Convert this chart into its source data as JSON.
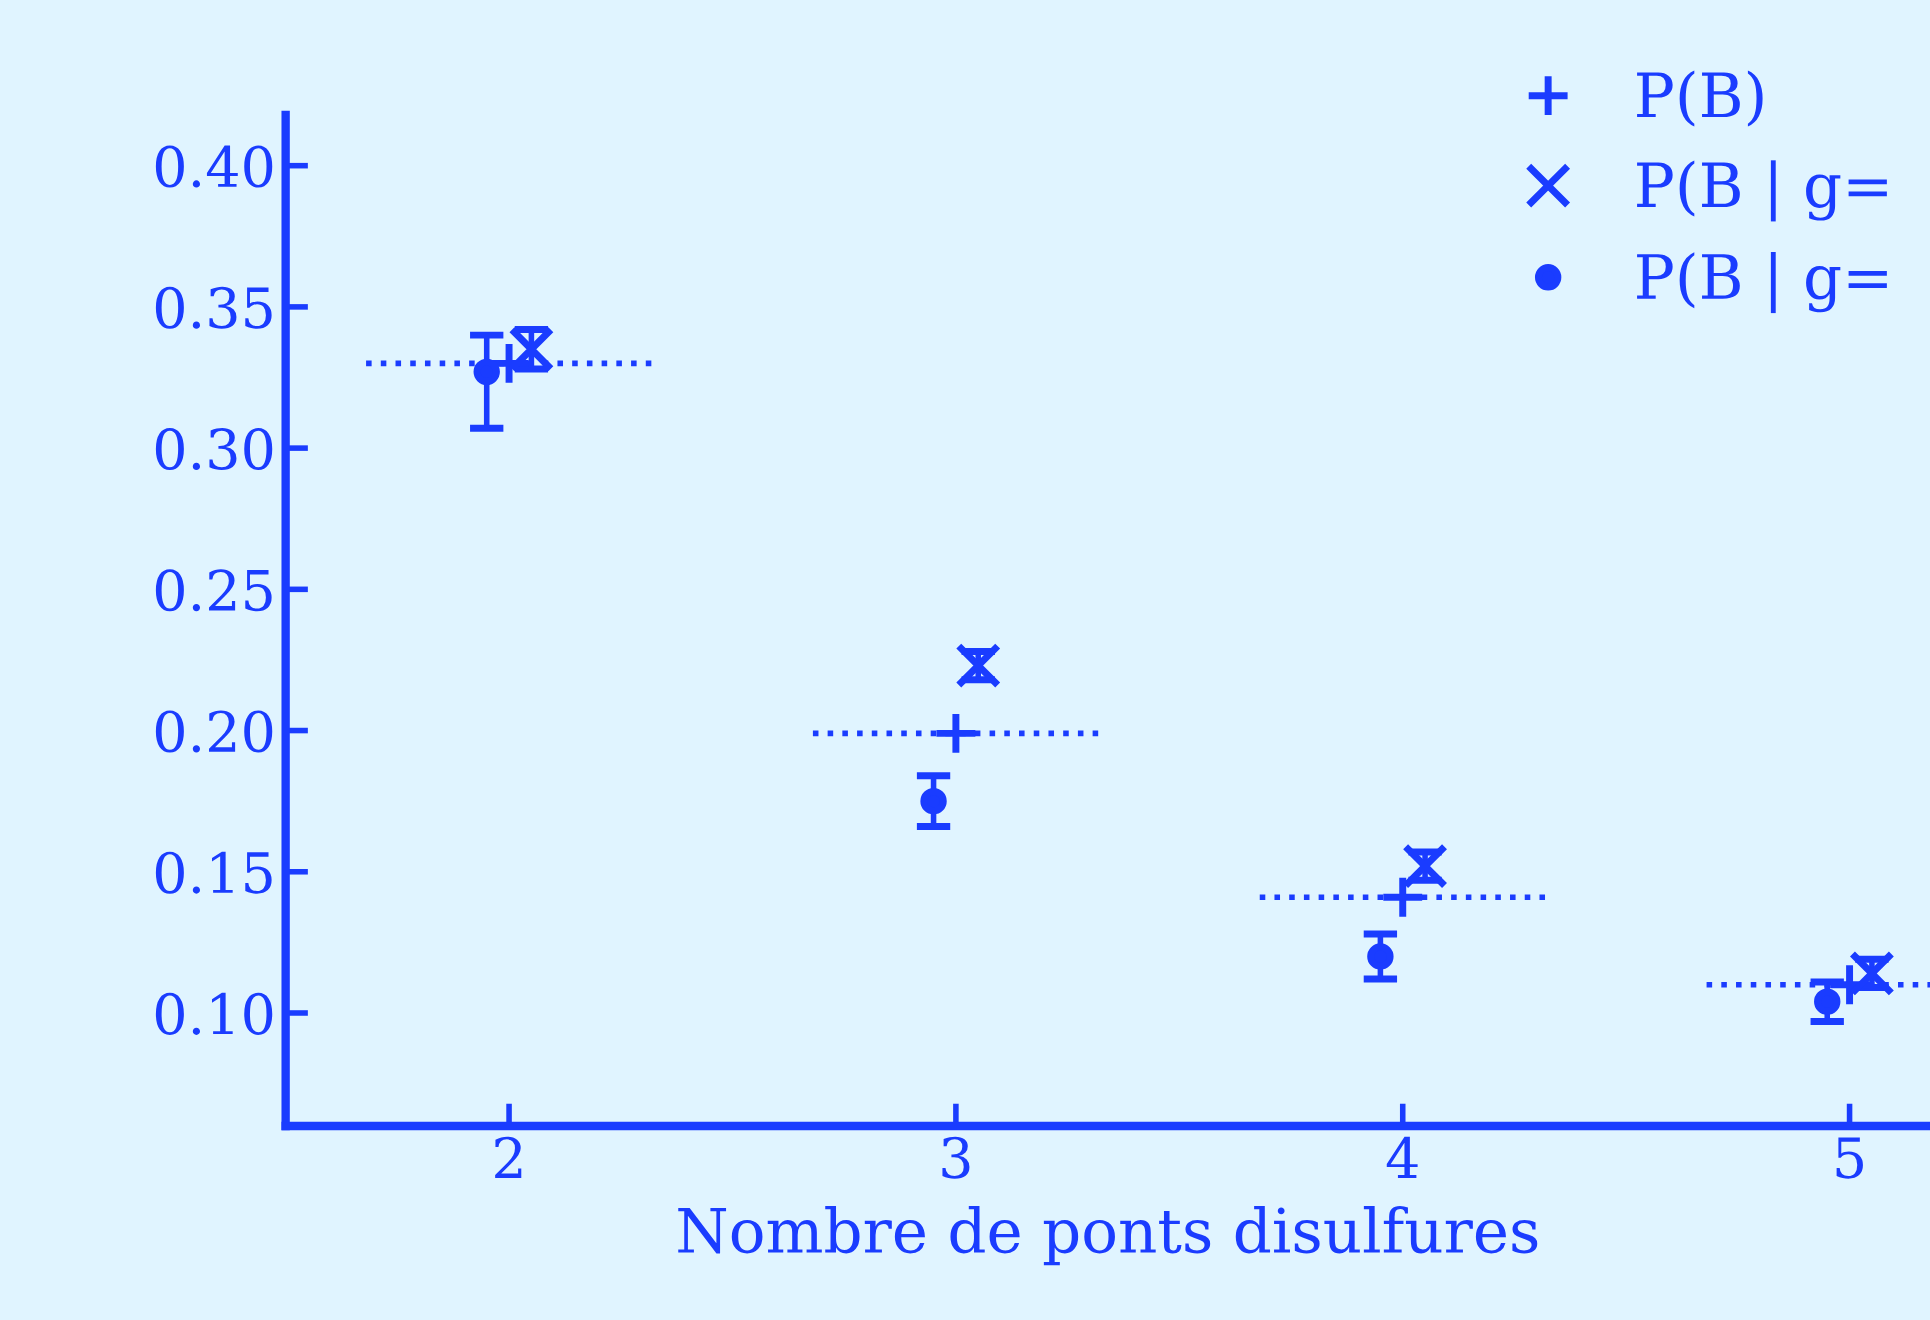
{
  "chart_data": {
    "type": "scatter",
    "xlabel": "Nombre de ponts disulfures",
    "xlim": [
      1.5,
      5.18
    ],
    "ylim": [
      0.06,
      0.418
    ],
    "xticks": [
      2,
      3,
      4,
      5
    ],
    "yticks": [
      {
        "value": 0.1,
        "label": "0.10"
      },
      {
        "value": 0.15,
        "label": "0.15"
      },
      {
        "value": 0.2,
        "label": "0.20"
      },
      {
        "value": 0.25,
        "label": "0.25"
      },
      {
        "value": 0.3,
        "label": "0.30"
      },
      {
        "value": 0.35,
        "label": "0.35"
      },
      {
        "value": 0.4,
        "label": "0.40"
      }
    ],
    "grid": false,
    "legend": "top right",
    "series": [
      {
        "name": "P(B)",
        "color": "#1a3cff",
        "marker": "plus",
        "x": [
          2,
          3,
          4,
          5
        ],
        "values": [
          0.33,
          0.199,
          0.141,
          0.11
        ],
        "xerrors": [
          0.32,
          0.32,
          0.32,
          [
            4.68,
            5.18
          ]
        ]
      },
      {
        "name": "P(B | g=",
        "color": "#1a3cff",
        "marker": "cross",
        "x": [
          2.05,
          3.05,
          4.05,
          5.05
        ],
        "values": [
          0.335,
          0.223,
          0.152,
          0.114
        ],
        "errors": [
          0.007,
          0.005,
          0.005,
          0.005
        ]
      },
      {
        "name": "P(B | g=",
        "color": "#1a3cff",
        "marker": "circle",
        "x": [
          1.95,
          2.95,
          3.95,
          4.95
        ],
        "values": [
          0.327,
          0.175,
          0.12,
          0.104
        ],
        "errors": [
          [
            0.307,
            0.34
          ],
          0.009,
          0.008,
          0.007
        ]
      }
    ]
  }
}
